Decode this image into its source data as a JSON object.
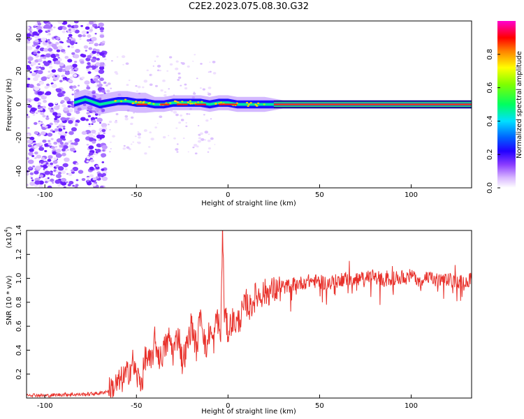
{
  "title": "C2E2.2023.075.08.30.G32",
  "chart_data": [
    {
      "type": "heatmap",
      "xlabel": "Height of straight line (km)",
      "ylabel": "Frequency (Hz)",
      "xlim": [
        -110,
        133
      ],
      "ylim": [
        -50,
        50
      ],
      "xticks": [
        -100,
        -50,
        0,
        50,
        100
      ],
      "yticks": [
        -40,
        -20,
        0,
        20,
        40
      ],
      "colorbar": {
        "label": "Normalized spectral amplitude",
        "range": [
          0,
          1
        ],
        "ticks": [
          "0.0",
          "0.2",
          "0.4",
          "0.6",
          "0.8"
        ],
        "colors": [
          "#ffffff",
          "#b37cff",
          "#5000ff",
          "#0000ff",
          "#00ffff",
          "#00ff00",
          "#ffff00",
          "#ff8000",
          "#ff0000",
          "#ff00ff"
        ]
      },
      "ridge": {
        "x": [
          -84,
          -78,
          -75,
          -70,
          -65,
          -60,
          -55,
          -50,
          -45,
          -40,
          -35,
          -30,
          -25,
          -20,
          -15,
          -10,
          -5,
          0,
          5,
          10,
          20,
          30,
          60,
          100,
          133
        ],
        "y": [
          1,
          3,
          2,
          0,
          1,
          2,
          2,
          1,
          1,
          0,
          0,
          1,
          1,
          1,
          1,
          0,
          1,
          1,
          0,
          0,
          0,
          0,
          0,
          0,
          0
        ]
      }
    },
    {
      "type": "line",
      "xlabel": "Height of straight line (km)",
      "ylabel": "SNR (10 * v/v)",
      "scale_label": "(x10",
      "scale_exp": "4",
      "xlim": [
        -110,
        133
      ],
      "ylim": [
        0,
        1.4
      ],
      "xticks": [
        -100,
        -50,
        0,
        50,
        100
      ],
      "yticks": [
        "0.2",
        "0.4",
        "0.6",
        "0.8",
        "1.0",
        "1.2",
        "1.4"
      ],
      "series": [
        {
          "color": "#e8302a",
          "x": [
            -110,
            -100,
            -90,
            -80,
            -70,
            -65,
            -60,
            -55,
            -52,
            -50,
            -47,
            -45,
            -42,
            -40,
            -37,
            -35,
            -32,
            -30,
            -27,
            -25,
            -22,
            -20,
            -17,
            -15,
            -12,
            -10,
            -8,
            -6,
            -4,
            -3,
            -2,
            0,
            2,
            5,
            8,
            10,
            12,
            15,
            20,
            25,
            30,
            35,
            40,
            45,
            50,
            55,
            60,
            65,
            70,
            75,
            80,
            85,
            90,
            95,
            100,
            105,
            110,
            115,
            120,
            125,
            133
          ],
          "y": [
            0.03,
            0.02,
            0.03,
            0.03,
            0.04,
            0.06,
            0.12,
            0.2,
            0.3,
            0.18,
            0.14,
            0.35,
            0.28,
            0.48,
            0.32,
            0.4,
            0.5,
            0.38,
            0.55,
            0.3,
            0.45,
            0.62,
            0.4,
            0.75,
            0.38,
            0.58,
            0.45,
            0.7,
            0.5,
            1.41,
            0.72,
            0.55,
            0.65,
            0.62,
            0.72,
            0.8,
            0.75,
            0.85,
            0.88,
            0.9,
            0.92,
            0.95,
            0.96,
            0.98,
            0.97,
            0.96,
            0.98,
            1.0,
            0.99,
            1.0,
            1.02,
            0.98,
            1.0,
            1.01,
            1.02,
            0.99,
            1.0,
            0.98,
            0.99,
            0.97,
            0.99
          ]
        }
      ]
    }
  ]
}
